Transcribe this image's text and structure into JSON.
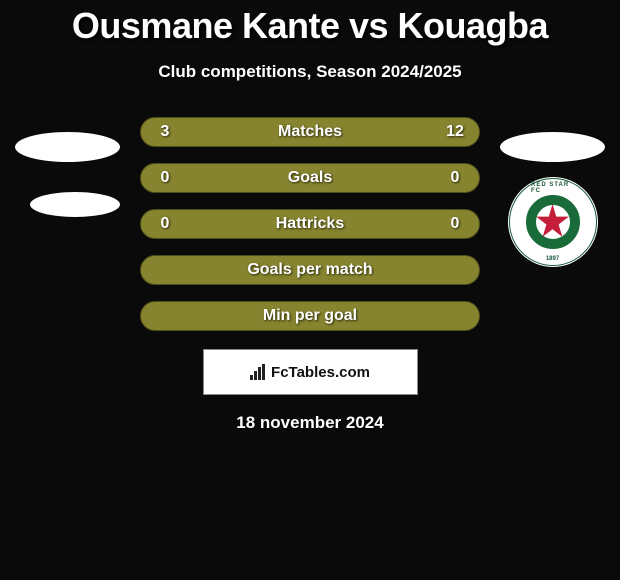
{
  "header": {
    "title": "Ousmane Kante vs Kouagba",
    "subtitle": "Club competitions, Season 2024/2025"
  },
  "colors": {
    "bar_background": "#86842e",
    "bar_border": "#4f4e1a",
    "text": "#ffffff",
    "page_background": "#0a0a0a",
    "club_ring": "#1a6b3a",
    "club_star": "#c41e3a"
  },
  "rows": [
    {
      "label": "Matches",
      "left": "3",
      "right": "12",
      "show_values": true
    },
    {
      "label": "Goals",
      "left": "0",
      "right": "0",
      "show_values": true
    },
    {
      "label": "Hattricks",
      "left": "0",
      "right": "0",
      "show_values": true
    },
    {
      "label": "Goals per match",
      "left": "",
      "right": "",
      "show_values": false
    },
    {
      "label": "Min per goal",
      "left": "",
      "right": "",
      "show_values": false
    }
  ],
  "club_right": {
    "name": "RED STAR FC",
    "year": "1897"
  },
  "attribution": {
    "text": "FcTables.com"
  },
  "footer": {
    "date": "18 november 2024"
  }
}
